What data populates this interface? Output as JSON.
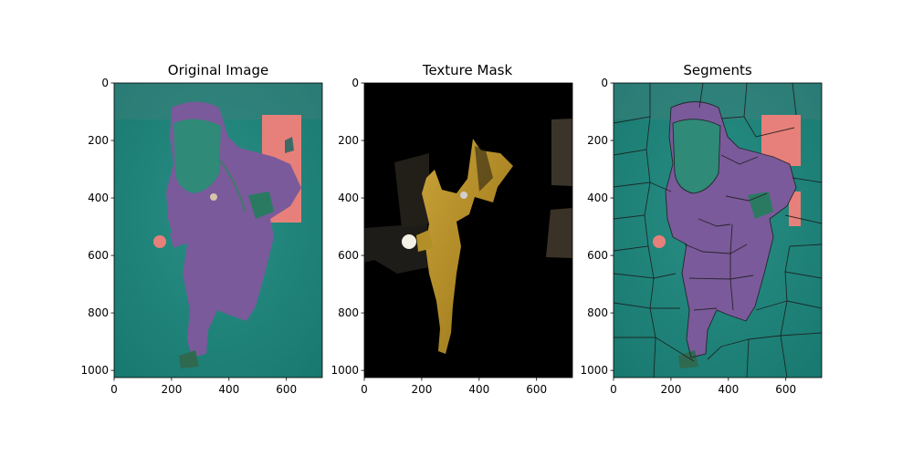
{
  "chart_data": [
    {
      "type": "image",
      "title": "Original Image",
      "xlim": [
        0,
        725
      ],
      "ylim": [
        1025,
        0
      ],
      "xticks": [
        0,
        200,
        400,
        600
      ],
      "yticks": [
        0,
        200,
        400,
        600,
        800,
        1000
      ],
      "xtick_labels": [
        "0",
        "200",
        "400",
        "600"
      ],
      "ytick_labels": [
        "0",
        "200",
        "400",
        "600",
        "800",
        "1000"
      ],
      "palette": {
        "background": "#1b847c",
        "figure": "#7a5a9a",
        "highlight": "#e7807a"
      }
    },
    {
      "type": "image",
      "title": "Texture Mask",
      "xlim": [
        0,
        725
      ],
      "ylim": [
        1025,
        0
      ],
      "xticks": [
        0,
        200,
        400,
        600
      ],
      "yticks": [
        0,
        200,
        400,
        600,
        800,
        1000
      ],
      "xtick_labels": [
        "0",
        "200",
        "400",
        "600"
      ],
      "ytick_labels": [
        "0",
        "200",
        "400",
        "600",
        "800",
        "1000"
      ],
      "palette": {
        "background": "#000000",
        "figure": "#b38f28",
        "shade": "#3a3224"
      }
    },
    {
      "type": "image",
      "title": "Segments",
      "xlim": [
        0,
        725
      ],
      "ylim": [
        1025,
        0
      ],
      "xticks": [
        0,
        200,
        400,
        600
      ],
      "yticks": [
        0,
        200,
        400,
        600,
        800,
        1000
      ],
      "xtick_labels": [
        "0",
        "200",
        "400",
        "600"
      ],
      "ytick_labels": [
        "0",
        "200",
        "400",
        "600",
        "800",
        "1000"
      ],
      "palette": {
        "background": "#1b847c",
        "figure": "#7a5a9a",
        "highlight": "#e7807a",
        "boundary": "#1a1a1a"
      }
    }
  ]
}
